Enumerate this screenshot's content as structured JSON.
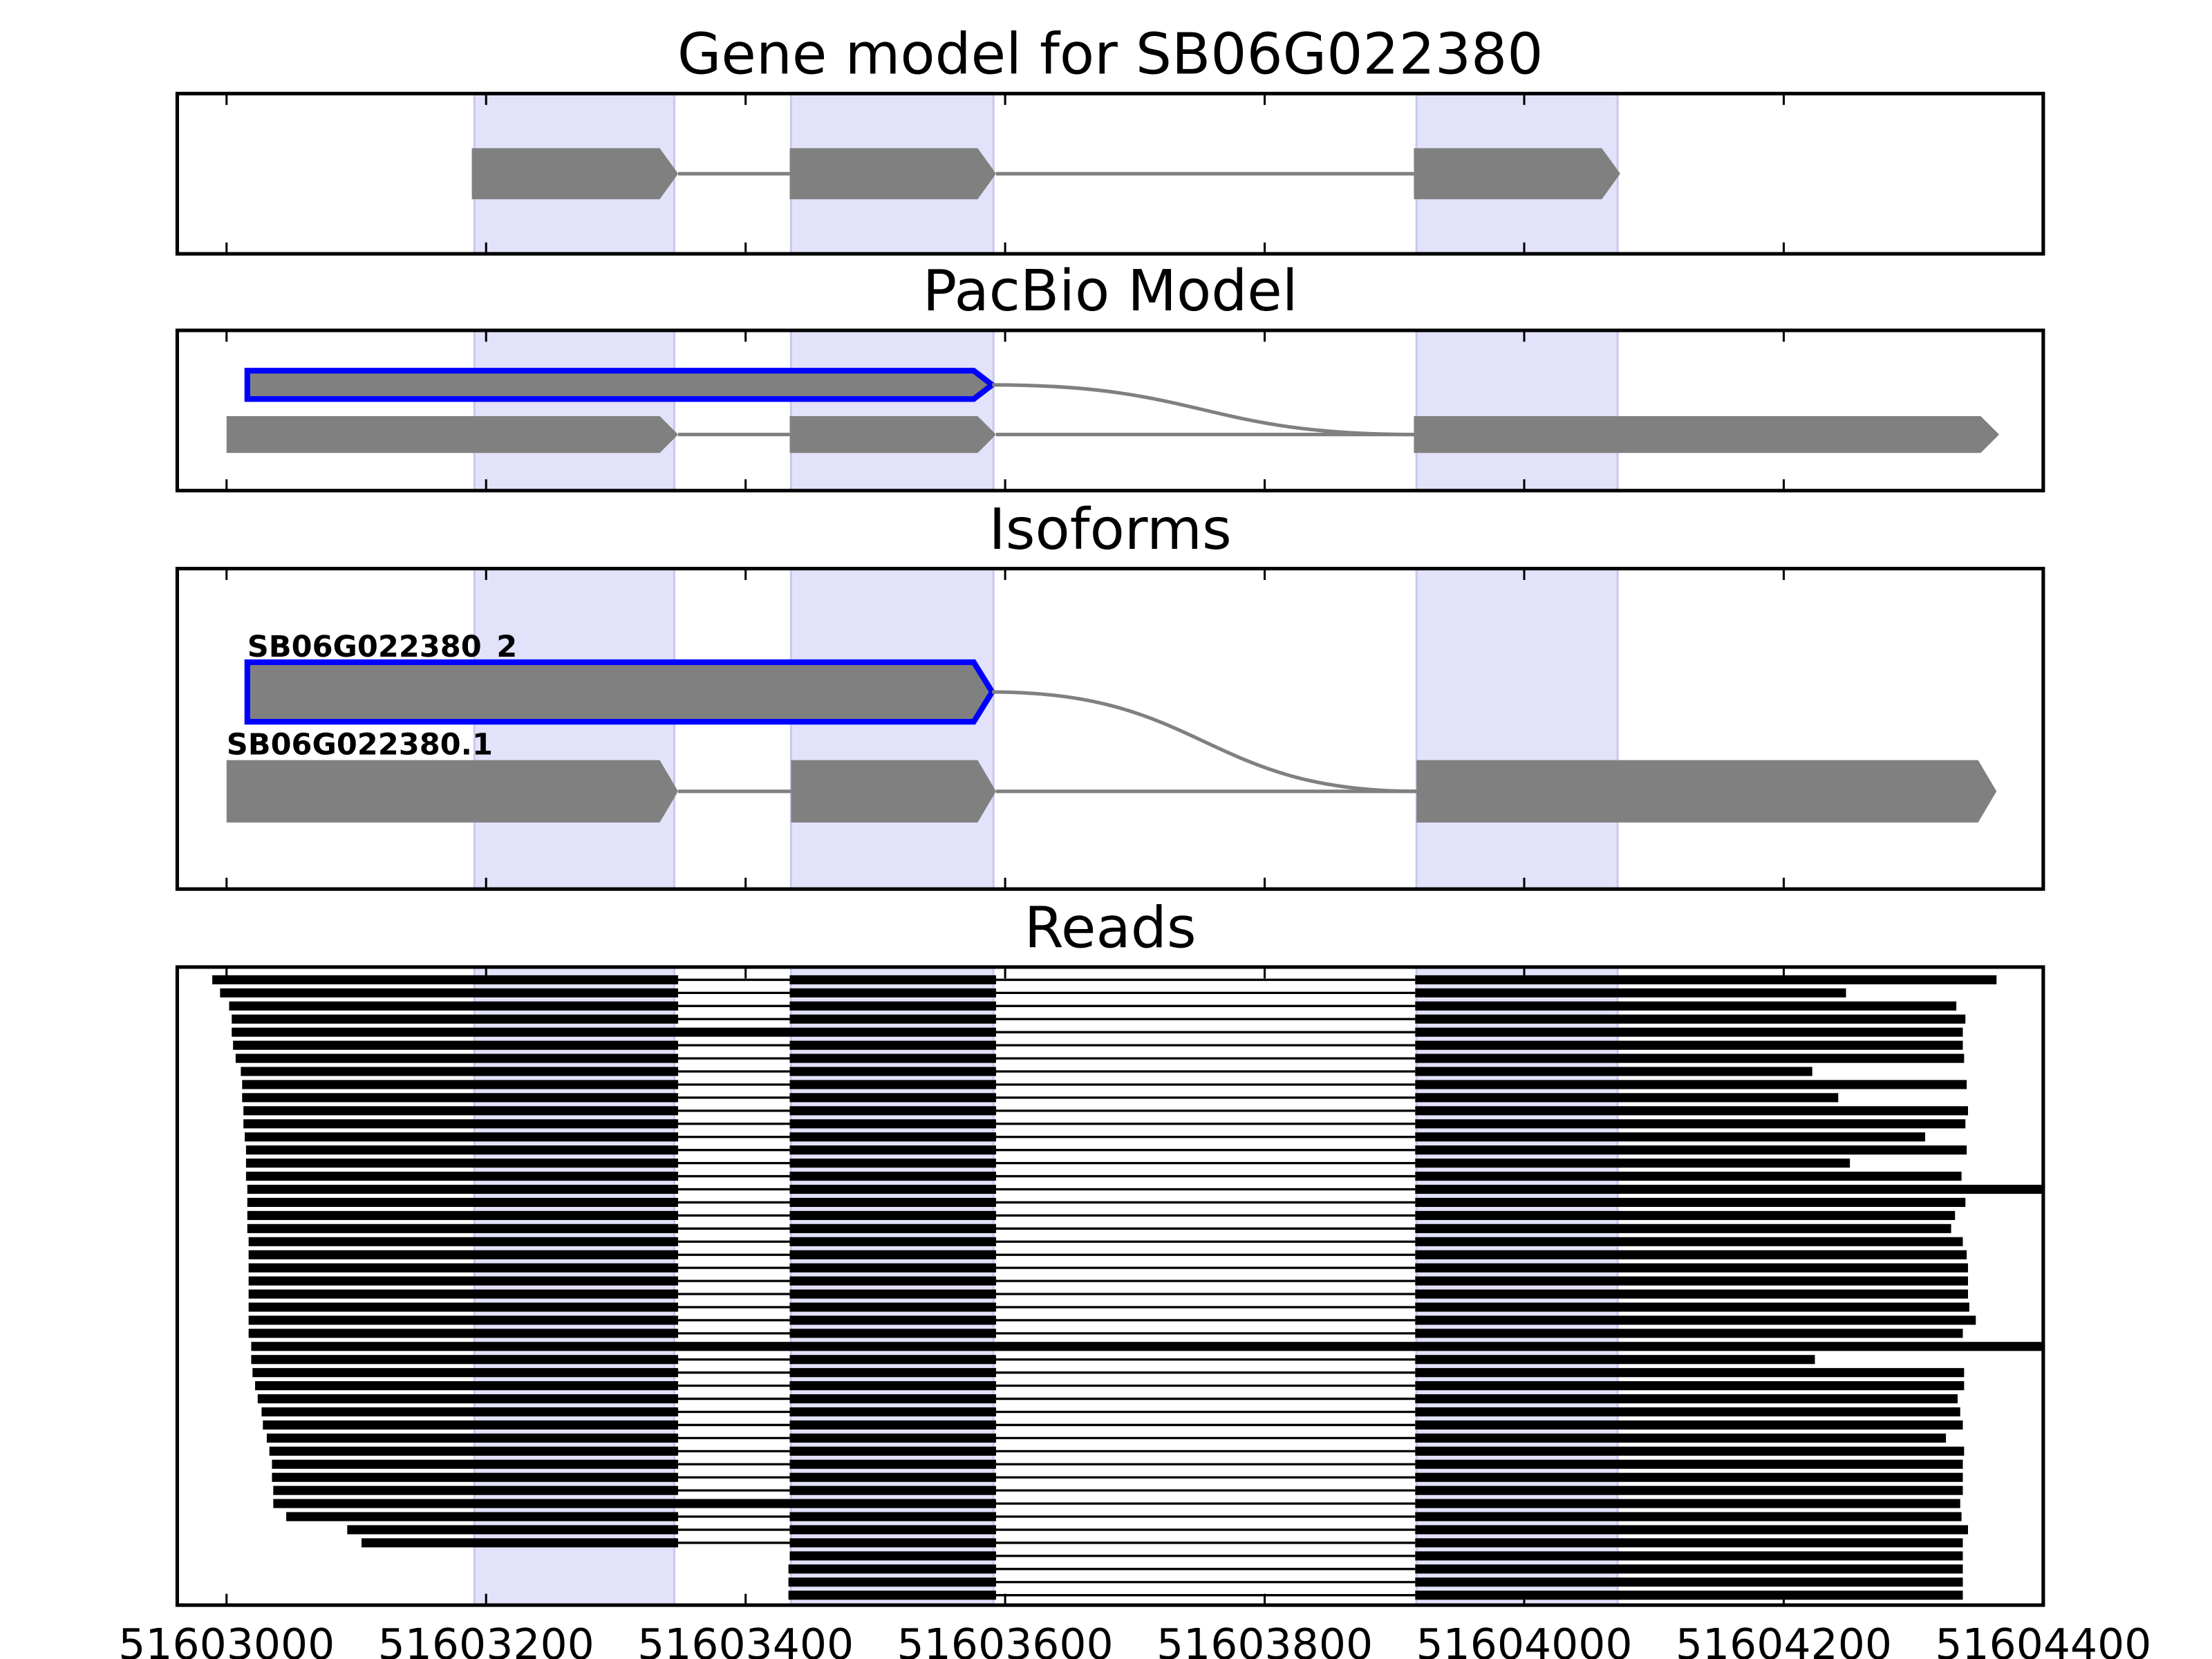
{
  "chart_data": {
    "type": "gene_model",
    "xlim": [
      51602962,
      51604400
    ],
    "xticks": [
      51603000,
      51603200,
      51603400,
      51603600,
      51603800,
      51604000,
      51604200,
      51604400
    ],
    "exon_color": "#808080",
    "selected_color": "#0000ff",
    "read_color": "#000000",
    "highlight_color": "#e2e2fb",
    "highlight_regions": [
      [
        51603191,
        51603345
      ],
      [
        51603435,
        51603591
      ],
      [
        51603917,
        51604072
      ]
    ],
    "panels": [
      {
        "title": "Gene model for SB06G022380",
        "kind": "models",
        "models": [
          {
            "exons": [
              [
                51603189,
                51603348
              ],
              [
                51603434,
                51603593
              ],
              [
                51603915,
                51604074
              ]
            ]
          }
        ]
      },
      {
        "title": "PacBio Model",
        "kind": "models",
        "models": [
          {
            "exons": [
              [
                51603016,
                51603590
              ],
              [
                51603915,
                51604366
              ]
            ],
            "selected": true
          },
          {
            "exons": [
              [
                51603000,
                51603348
              ],
              [
                51603434,
                51603593
              ],
              [
                51603915,
                51604366
              ]
            ]
          }
        ]
      },
      {
        "title": "Isoforms",
        "kind": "models",
        "models": [
          {
            "name": "SB06G022380_2",
            "exons": [
              [
                51603016,
                51603590
              ],
              [
                51603917,
                51604364
              ]
            ],
            "selected": true
          },
          {
            "name": "SB06G022380.1",
            "exons": [
              [
                51603000,
                51603348
              ],
              [
                51603435,
                51603593
              ],
              [
                51603917,
                51604364
              ]
            ]
          }
        ]
      },
      {
        "title": "Reads",
        "kind": "reads",
        "reads": [
          {
            "exons": [
              [
                51602989,
                51603348
              ],
              [
                51603434,
                51603593
              ],
              [
                51603916,
                51604364
              ]
            ]
          },
          {
            "exons": [
              [
                51602995,
                51603348
              ],
              [
                51603434,
                51603593
              ],
              [
                51603916,
                51604248
              ]
            ]
          },
          {
            "exons": [
              [
                51603002,
                51603348
              ],
              [
                51603434,
                51603593
              ],
              [
                51603916,
                51604333
              ]
            ]
          },
          {
            "exons": [
              [
                51603004,
                51603348
              ],
              [
                51603434,
                51603593
              ],
              [
                51603916,
                51604340
              ]
            ]
          },
          {
            "exons": [
              [
                51603004,
                51603593
              ],
              [
                51603916,
                51604338
              ]
            ]
          },
          {
            "exons": [
              [
                51603005,
                51603348
              ],
              [
                51603434,
                51603593
              ],
              [
                51603916,
                51604338
              ]
            ]
          },
          {
            "exons": [
              [
                51603007,
                51603348
              ],
              [
                51603434,
                51603593
              ],
              [
                51603916,
                51604339
              ]
            ]
          },
          {
            "exons": [
              [
                51603011,
                51603348
              ],
              [
                51603434,
                51603593
              ],
              [
                51603916,
                51604222
              ]
            ]
          },
          {
            "exons": [
              [
                51603012,
                51603348
              ],
              [
                51603434,
                51603593
              ],
              [
                51603916,
                51604341
              ]
            ]
          },
          {
            "exons": [
              [
                51603012,
                51603348
              ],
              [
                51603434,
                51603593
              ],
              [
                51603916,
                51604242
              ]
            ]
          },
          {
            "exons": [
              [
                51603013,
                51603348
              ],
              [
                51603434,
                51603593
              ],
              [
                51603916,
                51604342
              ]
            ]
          },
          {
            "exons": [
              [
                51603013,
                51603348
              ],
              [
                51603434,
                51603593
              ],
              [
                51603916,
                51604340
              ]
            ]
          },
          {
            "exons": [
              [
                51603014,
                51603348
              ],
              [
                51603434,
                51603593
              ],
              [
                51603916,
                51604309
              ]
            ]
          },
          {
            "exons": [
              [
                51603015,
                51603348
              ],
              [
                51603434,
                51603593
              ],
              [
                51603916,
                51604341
              ]
            ]
          },
          {
            "exons": [
              [
                51603015,
                51603348
              ],
              [
                51603434,
                51603593
              ],
              [
                51603916,
                51604251
              ]
            ]
          },
          {
            "exons": [
              [
                51603015,
                51603348
              ],
              [
                51603434,
                51603593
              ],
              [
                51603916,
                51604337
              ]
            ]
          },
          {
            "exons": [
              [
                51603016,
                51603348
              ],
              [
                51603434,
                51603593
              ],
              [
                51603916,
                51604400
              ]
            ]
          },
          {
            "exons": [
              [
                51603016,
                51603348
              ],
              [
                51603434,
                51603593
              ],
              [
                51603916,
                51604340
              ]
            ]
          },
          {
            "exons": [
              [
                51603016,
                51603348
              ],
              [
                51603434,
                51603593
              ],
              [
                51603916,
                51604332
              ]
            ]
          },
          {
            "exons": [
              [
                51603016,
                51603348
              ],
              [
                51603434,
                51603593
              ],
              [
                51603916,
                51604329
              ]
            ]
          },
          {
            "exons": [
              [
                51603017,
                51603348
              ],
              [
                51603434,
                51603593
              ],
              [
                51603916,
                51604338
              ]
            ]
          },
          {
            "exons": [
              [
                51603017,
                51603348
              ],
              [
                51603434,
                51603593
              ],
              [
                51603916,
                51604341
              ]
            ]
          },
          {
            "exons": [
              [
                51603017,
                51603348
              ],
              [
                51603434,
                51603593
              ],
              [
                51603916,
                51604342
              ]
            ]
          },
          {
            "exons": [
              [
                51603017,
                51603348
              ],
              [
                51603434,
                51603593
              ],
              [
                51603916,
                51604342
              ]
            ]
          },
          {
            "exons": [
              [
                51603017,
                51603348
              ],
              [
                51603434,
                51603593
              ],
              [
                51603916,
                51604342
              ]
            ]
          },
          {
            "exons": [
              [
                51603017,
                51603348
              ],
              [
                51603434,
                51603593
              ],
              [
                51603916,
                51604343
              ]
            ]
          },
          {
            "exons": [
              [
                51603017,
                51603348
              ],
              [
                51603434,
                51603593
              ],
              [
                51603916,
                51604348
              ]
            ]
          },
          {
            "exons": [
              [
                51603017,
                51603348
              ],
              [
                51603434,
                51603593
              ],
              [
                51603916,
                51604338
              ]
            ]
          },
          {
            "exons": [
              [
                51603019,
                51604400
              ]
            ]
          },
          {
            "exons": [
              [
                51603019,
                51603348
              ],
              [
                51603434,
                51603593
              ],
              [
                51603916,
                51604224
              ]
            ]
          },
          {
            "exons": [
              [
                51603020,
                51603348
              ],
              [
                51603434,
                51603593
              ],
              [
                51603916,
                51604339
              ]
            ]
          },
          {
            "exons": [
              [
                51603022,
                51603348
              ],
              [
                51603434,
                51603593
              ],
              [
                51603916,
                51604339
              ]
            ]
          },
          {
            "exons": [
              [
                51603024,
                51603348
              ],
              [
                51603434,
                51603593
              ],
              [
                51603916,
                51604334
              ]
            ]
          },
          {
            "exons": [
              [
                51603027,
                51603348
              ],
              [
                51603434,
                51603593
              ],
              [
                51603916,
                51604336
              ]
            ]
          },
          {
            "exons": [
              [
                51603028,
                51603348
              ],
              [
                51603434,
                51603593
              ],
              [
                51603916,
                51604338
              ]
            ]
          },
          {
            "exons": [
              [
                51603031,
                51603348
              ],
              [
                51603434,
                51603593
              ],
              [
                51603916,
                51604325
              ]
            ]
          },
          {
            "exons": [
              [
                51603033,
                51603348
              ],
              [
                51603434,
                51603593
              ],
              [
                51603916,
                51604339
              ]
            ]
          },
          {
            "exons": [
              [
                51603035,
                51603348
              ],
              [
                51603434,
                51603593
              ],
              [
                51603916,
                51604338
              ]
            ]
          },
          {
            "exons": [
              [
                51603035,
                51603348
              ],
              [
                51603434,
                51603593
              ],
              [
                51603916,
                51604338
              ]
            ]
          },
          {
            "exons": [
              [
                51603036,
                51603348
              ],
              [
                51603434,
                51603593
              ],
              [
                51603916,
                51604338
              ]
            ]
          },
          {
            "exons": [
              [
                51603036,
                51603593
              ],
              [
                51603916,
                51604336
              ]
            ]
          },
          {
            "exons": [
              [
                51603046,
                51603348
              ],
              [
                51603434,
                51603593
              ],
              [
                51603916,
                51604337
              ]
            ]
          },
          {
            "exons": [
              [
                51603093,
                51603348
              ],
              [
                51603434,
                51603593
              ],
              [
                51603916,
                51604342
              ]
            ]
          },
          {
            "exons": [
              [
                51603104,
                51603348
              ],
              [
                51603434,
                51603593
              ],
              [
                51603916,
                51604338
              ]
            ]
          },
          {
            "exons": [
              [
                51603434,
                51603593
              ],
              [
                51603916,
                51604338
              ]
            ]
          },
          {
            "exons": [
              [
                51603433,
                51603593
              ],
              [
                51603916,
                51604338
              ]
            ]
          },
          {
            "exons": [
              [
                51603433,
                51603593
              ],
              [
                51603916,
                51604338
              ]
            ]
          },
          {
            "exons": [
              [
                51603433,
                51603593
              ],
              [
                51603916,
                51604338
              ]
            ]
          }
        ]
      }
    ]
  }
}
